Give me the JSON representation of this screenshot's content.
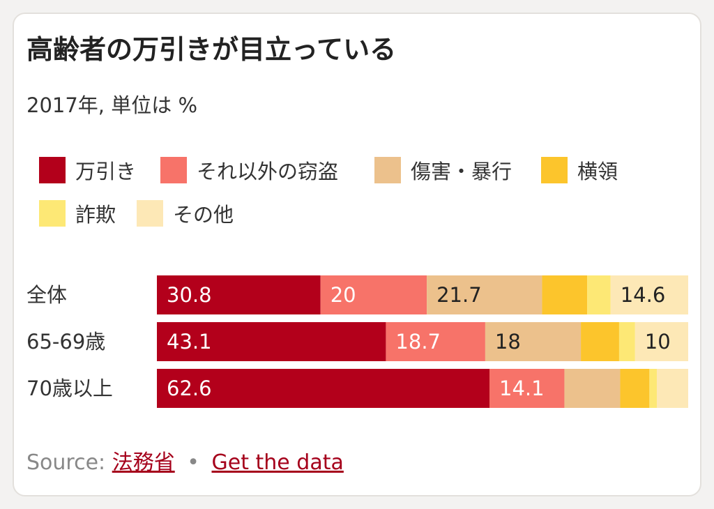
{
  "title": "高齢者の万引きが目立っている",
  "subtitle": "2017年, 単位は %",
  "colors": {
    "shoplifting": "#b3001b",
    "other_theft": "#f77369",
    "assault": "#ecc18c",
    "embezzlement": "#fcc52c",
    "fraud": "#fde875",
    "other": "#fde8b6"
  },
  "legend": [
    {
      "label": "万引き",
      "color": "#b3001b"
    },
    {
      "label": "それ以外の窃盗",
      "color": "#f77369"
    },
    {
      "label": "傷害・暴行",
      "color": "#ecc18c"
    },
    {
      "label": "横領",
      "color": "#fcc52c"
    },
    {
      "label": "詐欺",
      "color": "#fde875"
    },
    {
      "label": "その他",
      "color": "#fde8b6"
    }
  ],
  "chart_data": {
    "type": "bar",
    "orientation": "horizontal",
    "stacked": true,
    "unit": "%",
    "categories": [
      "全体",
      "65-69歳",
      "70歳以上"
    ],
    "series": [
      {
        "name": "万引き",
        "values": [
          30.8,
          43.1,
          62.6
        ],
        "shown_labels": [
          "30.8",
          "43.1",
          "62.6"
        ]
      },
      {
        "name": "それ以外の窃盗",
        "values": [
          20,
          18.7,
          14.1
        ],
        "shown_labels": [
          "20",
          "18.7",
          "14.1"
        ]
      },
      {
        "name": "傷害・暴行",
        "values": [
          21.7,
          18,
          10.5
        ],
        "shown_labels": [
          "21.7",
          "18",
          ""
        ]
      },
      {
        "name": "横領",
        "values": [
          8.5,
          7.2,
          5.5
        ],
        "shown_labels": [
          "",
          "",
          ""
        ]
      },
      {
        "name": "詐欺",
        "values": [
          4.4,
          3.0,
          1.4
        ],
        "shown_labels": [
          "",
          "",
          ""
        ]
      },
      {
        "name": "その他",
        "values": [
          14.6,
          10,
          5.9
        ],
        "shown_labels": [
          "14.6",
          "10",
          ""
        ]
      }
    ],
    "xlim": [
      0,
      100
    ],
    "legend_position": "top"
  },
  "footer": {
    "source_prefix": "Source:",
    "source_link": "法務省",
    "separator": "•",
    "data_link": "Get the data"
  }
}
